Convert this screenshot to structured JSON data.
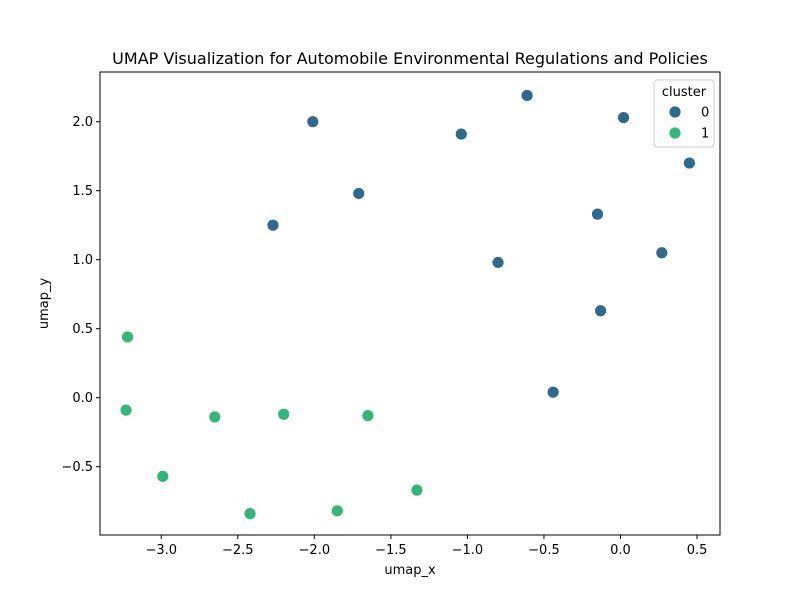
{
  "chart_data": {
    "type": "scatter",
    "title": "UMAP Visualization for Automobile Environmental Regulations and Policies",
    "xlabel": "umap_x",
    "ylabel": "umap_y",
    "xlim": [
      -3.4,
      0.65
    ],
    "ylim": [
      -0.995,
      2.36
    ],
    "xticks": [
      -3.0,
      -2.5,
      -2.0,
      -1.5,
      -1.0,
      -0.5,
      0.0,
      0.5
    ],
    "xtick_labels": [
      "−3.0",
      "−2.5",
      "−2.0",
      "−1.5",
      "−1.0",
      "−0.5",
      "0.0",
      "0.5"
    ],
    "yticks": [
      -0.5,
      0.0,
      0.5,
      1.0,
      1.5,
      2.0
    ],
    "ytick_labels": [
      "−0.5",
      "0.0",
      "0.5",
      "1.0",
      "1.5",
      "2.0"
    ],
    "grid": false,
    "legend": {
      "title": "cluster",
      "position": "top-right",
      "entries": [
        {
          "label": "0",
          "color": "#2d6a8e"
        },
        {
          "label": "1",
          "color": "#33b679"
        }
      ]
    },
    "series": [
      {
        "name": "0",
        "color": "#2d6a8e",
        "points": [
          {
            "x": -2.01,
            "y": 2.0
          },
          {
            "x": -1.71,
            "y": 1.48
          },
          {
            "x": -2.27,
            "y": 1.25
          },
          {
            "x": -1.04,
            "y": 1.91
          },
          {
            "x": -0.61,
            "y": 2.19
          },
          {
            "x": 0.02,
            "y": 2.03
          },
          {
            "x": 0.45,
            "y": 1.7
          },
          {
            "x": -0.15,
            "y": 1.33
          },
          {
            "x": 0.27,
            "y": 1.05
          },
          {
            "x": -0.8,
            "y": 0.98
          },
          {
            "x": -0.13,
            "y": 0.63
          },
          {
            "x": -0.44,
            "y": 0.04
          }
        ]
      },
      {
        "name": "1",
        "color": "#33b679",
        "points": [
          {
            "x": -3.22,
            "y": 0.44
          },
          {
            "x": -3.23,
            "y": -0.09
          },
          {
            "x": -2.65,
            "y": -0.14
          },
          {
            "x": -2.2,
            "y": -0.12
          },
          {
            "x": -1.65,
            "y": -0.13
          },
          {
            "x": -2.99,
            "y": -0.57
          },
          {
            "x": -1.33,
            "y": -0.67
          },
          {
            "x": -2.42,
            "y": -0.84
          },
          {
            "x": -1.85,
            "y": -0.82
          }
        ]
      }
    ]
  }
}
